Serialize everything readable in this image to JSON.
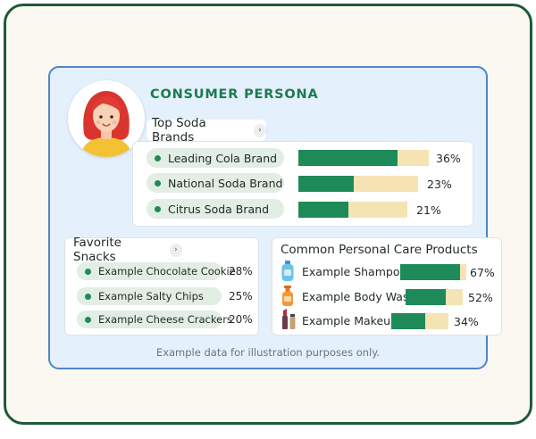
{
  "title": "CONSUMER PERSONA",
  "avatar_icon": "woman-red-hair-avatar-icon",
  "soda": {
    "label": "Top Soda Brands",
    "items": [
      {
        "name": "Leading Cola Brand",
        "pct_label": "36%",
        "fill": 0.76
      },
      {
        "name": "National Soda Brand",
        "pct_label": "23%",
        "fill": 0.46
      },
      {
        "name": "Citrus Soda Brand",
        "pct_label": "21%",
        "fill": 0.46
      }
    ]
  },
  "snacks": {
    "label": "Favorite Snacks",
    "items": [
      {
        "name": "Example Chocolate Cookie",
        "pct_label": "28%"
      },
      {
        "name": "Example Salty Chips",
        "pct_label": "25%"
      },
      {
        "name": "Example Cheese Crackers",
        "pct_label": "20%"
      }
    ]
  },
  "care": {
    "label": "Common Personal Care Products",
    "items": [
      {
        "name": "Example Shampoo",
        "pct_label": "67%",
        "fill": 0.91,
        "icon": "shampoo-bottle-icon"
      },
      {
        "name": "Example Body Wash",
        "pct_label": "52%",
        "fill": 0.7,
        "icon": "body-wash-bottle-icon"
      },
      {
        "name": "Example Makeup",
        "pct_label": "34%",
        "fill": 0.59,
        "icon": "makeup-lipstick-icon"
      }
    ]
  },
  "footnote": "Example data for illustration purposes only.",
  "colors": {
    "frame": "#1e5a3a",
    "card_border": "#4f86c6",
    "card_bg": "#e4f0fb",
    "accent_green": "#1e8a5a",
    "bar_track": "#f6e3b4",
    "pill_bg": "#e2ede4"
  }
}
